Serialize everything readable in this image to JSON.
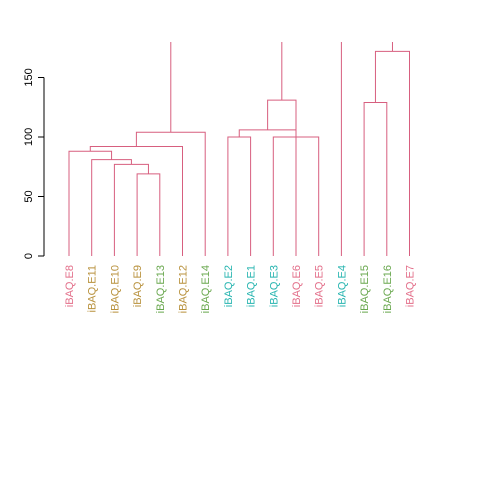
{
  "chart_data": {
    "type": "dendrogram",
    "title": "",
    "xlabel": "",
    "ylabel": "",
    "ylim": [
      0,
      180
    ],
    "y_ticks": [
      0,
      50,
      100,
      150
    ],
    "branch_color": "#d75f7f",
    "leaves": [
      {
        "label": "iBAQ.E8",
        "color": "#e36f8a"
      },
      {
        "label": "iBAQ.E11",
        "color": "#b8913c"
      },
      {
        "label": "iBAQ.E10",
        "color": "#b8913c"
      },
      {
        "label": "iBAQ.E9",
        "color": "#b8913c"
      },
      {
        "label": "iBAQ.E13",
        "color": "#6aa84f"
      },
      {
        "label": "iBAQ.E12",
        "color": "#b8913c"
      },
      {
        "label": "iBAQ.E14",
        "color": "#6aa84f"
      },
      {
        "label": "iBAQ.E2",
        "color": "#27b5b0"
      },
      {
        "label": "iBAQ.E1",
        "color": "#27b5b0"
      },
      {
        "label": "iBAQ.E3",
        "color": "#27b5b0"
      },
      {
        "label": "iBAQ.E6",
        "color": "#e36f8a"
      },
      {
        "label": "iBAQ.E5",
        "color": "#e36f8a"
      },
      {
        "label": "iBAQ.E4",
        "color": "#27b5b0"
      },
      {
        "label": "iBAQ.E15",
        "color": "#6aa84f"
      },
      {
        "label": "iBAQ.E16",
        "color": "#6aa84f"
      },
      {
        "label": "iBAQ.E7",
        "color": "#e36f8a"
      }
    ],
    "merges": [
      {
        "id": "m1",
        "left": "iBAQ.E9",
        "right": "iBAQ.E13",
        "height": 69
      },
      {
        "id": "m2",
        "left": "iBAQ.E10",
        "right": "m1",
        "height": 77
      },
      {
        "id": "m3",
        "left": "iBAQ.E11",
        "right": "m2",
        "height": 81
      },
      {
        "id": "m4",
        "left": "iBAQ.E8",
        "right": "m3",
        "height": 88
      },
      {
        "id": "m5",
        "left": "iBAQ.E12",
        "right": "m4",
        "height": 92
      },
      {
        "id": "m6",
        "left": "iBAQ.E14",
        "right": "m5",
        "height": 104
      },
      {
        "id": "m7",
        "left": "iBAQ.E2",
        "right": "iBAQ.E1",
        "height": 100
      },
      {
        "id": "m8",
        "left": "iBAQ.E3",
        "right": "iBAQ.E5",
        "height": 100
      },
      {
        "id": "m9",
        "left": "m7",
        "right": "m8",
        "height": 106
      },
      {
        "id": "m10",
        "left": "m9",
        "right": "iBAQ.E6",
        "height": 131
      },
      {
        "id": "m11",
        "left": "iBAQ.E15",
        "right": "iBAQ.E16",
        "height": 129
      },
      {
        "id": "m12",
        "left": "m11",
        "right": "iBAQ.E7",
        "height": 172
      },
      {
        "id": "m13",
        "left": "m12",
        "right": "iBAQ.E4",
        "height": 186
      },
      {
        "id": "m14",
        "left": "m6",
        "right": "m10",
        "height": 200
      }
    ]
  }
}
